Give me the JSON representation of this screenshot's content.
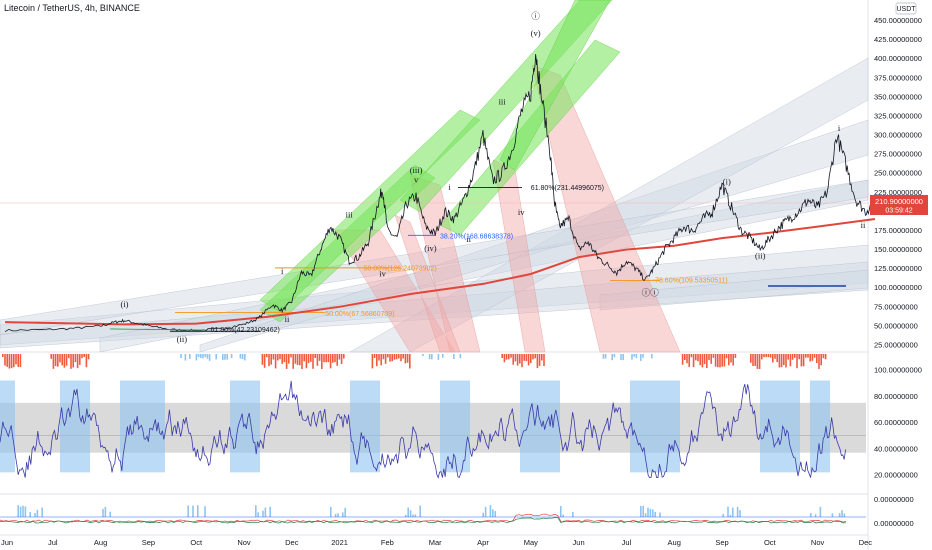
{
  "window": {
    "title": "Litecoin / TetherUS, 4h, BINANCE"
  },
  "colors": {
    "accent": "#2962ff",
    "price_line": "#131722",
    "ma_line": "#e0463c",
    "green_channel": "#76e35a",
    "red_channel": "#f2a7a7",
    "gray_channel": "#cfd6e3",
    "osc_line": "#3a3aa8",
    "osc_high": "#8fc3f2",
    "osc_band": "#d4d4d4",
    "hist_red": "#ef5b3b",
    "hist_blue": "#8fc3f2"
  },
  "chart_data": [
    {
      "type": "line",
      "title": "Litecoin / TetherUS, 4h, BINANCE",
      "currency": "USDT",
      "x": [
        "Jun",
        "Jul",
        "Aug",
        "Sep",
        "Oct",
        "Nov",
        "Dec",
        "2021",
        "Feb",
        "Mar",
        "Apr",
        "May",
        "Jun",
        "Jul",
        "Aug",
        "Sep",
        "Oct",
        "Nov",
        "Dec"
      ],
      "y_ticks": [
        "450.00000000",
        "425.00000000",
        "400.00000000",
        "375.00000000",
        "350.00000000",
        "325.00000000",
        "300.00000000",
        "275.00000000",
        "250.00000000",
        "225.00000000",
        "200.00000000",
        "175.00000000",
        "150.00000000",
        "125.00000000",
        "100.00000000",
        "75.00000000",
        "50.00000000",
        "25.00000000"
      ],
      "ylim": [
        25,
        450
      ],
      "last_price": "210.90000000",
      "countdown": "03:59:42",
      "price_series": [
        [
          0,
          44
        ],
        [
          0.8,
          45
        ],
        [
          1.5,
          47
        ],
        [
          2.0,
          50
        ],
        [
          2.3,
          55
        ],
        [
          2.5,
          57
        ],
        [
          2.8,
          53
        ],
        [
          3.1,
          49
        ],
        [
          3.5,
          45
        ],
        [
          4.0,
          44
        ],
        [
          4.5,
          46
        ],
        [
          5.0,
          52
        ],
        [
          5.3,
          60
        ],
        [
          5.6,
          78
        ],
        [
          5.8,
          70
        ],
        [
          6.0,
          82
        ],
        [
          6.2,
          120
        ],
        [
          6.4,
          115
        ],
        [
          6.6,
          150
        ],
        [
          6.8,
          180
        ],
        [
          7.0,
          165
        ],
        [
          7.2,
          135
        ],
        [
          7.4,
          140
        ],
        [
          7.6,
          160
        ],
        [
          7.8,
          210
        ],
        [
          7.9,
          230
        ],
        [
          8.0,
          175
        ],
        [
          8.2,
          165
        ],
        [
          8.4,
          210
        ],
        [
          8.6,
          220
        ],
        [
          8.8,
          180
        ],
        [
          9.0,
          170
        ],
        [
          9.2,
          200
        ],
        [
          9.4,
          190
        ],
        [
          9.6,
          215
        ],
        [
          9.8,
          250
        ],
        [
          10.0,
          300
        ],
        [
          10.2,
          240
        ],
        [
          10.4,
          250
        ],
        [
          10.6,
          280
        ],
        [
          10.8,
          330
        ],
        [
          11.0,
          355
        ],
        [
          11.1,
          410
        ],
        [
          11.2,
          360
        ],
        [
          11.4,
          280
        ],
        [
          11.5,
          210
        ],
        [
          11.6,
          180
        ],
        [
          11.8,
          190
        ],
        [
          12.0,
          150
        ],
        [
          12.2,
          160
        ],
        [
          12.4,
          140
        ],
        [
          12.6,
          130
        ],
        [
          12.8,
          120
        ],
        [
          13.0,
          135
        ],
        [
          13.2,
          125
        ],
        [
          13.4,
          110
        ],
        [
          13.6,
          128
        ],
        [
          13.8,
          150
        ],
        [
          14.0,
          165
        ],
        [
          14.2,
          180
        ],
        [
          14.4,
          175
        ],
        [
          14.6,
          190
        ],
        [
          14.8,
          200
        ],
        [
          15.0,
          235
        ],
        [
          15.2,
          205
        ],
        [
          15.4,
          175
        ],
        [
          15.6,
          165
        ],
        [
          15.8,
          150
        ],
        [
          16.0,
          165
        ],
        [
          16.2,
          180
        ],
        [
          16.4,
          190
        ],
        [
          16.6,
          200
        ],
        [
          16.8,
          215
        ],
        [
          17.0,
          205
        ],
        [
          17.2,
          225
        ],
        [
          17.4,
          300
        ],
        [
          17.6,
          260
        ],
        [
          17.8,
          215
        ],
        [
          18.0,
          200
        ],
        [
          18.2,
          212
        ]
      ],
      "ma_series": [
        [
          0,
          55
        ],
        [
          2.5,
          52
        ],
        [
          4.0,
          53
        ],
        [
          5.5,
          62
        ],
        [
          7.0,
          75
        ],
        [
          8.5,
          92
        ],
        [
          10.0,
          105
        ],
        [
          11.0,
          118
        ],
        [
          12.0,
          140
        ],
        [
          13.0,
          150
        ],
        [
          14.0,
          155
        ],
        [
          15.0,
          165
        ],
        [
          16.0,
          172
        ],
        [
          17.0,
          180
        ],
        [
          18.2,
          190
        ]
      ],
      "wave_labels": [
        {
          "text": "(i)",
          "x": 2.5,
          "y": 75
        },
        {
          "text": "(ii)",
          "x": 3.7,
          "y": 29
        },
        {
          "text": "i",
          "x": 5.8,
          "y": 118
        },
        {
          "text": "ii",
          "x": 5.9,
          "y": 55
        },
        {
          "text": "iii",
          "x": 7.2,
          "y": 192
        },
        {
          "text": "iv",
          "x": 7.9,
          "y": 115
        },
        {
          "text": "(iii)",
          "x": 8.6,
          "y": 250
        },
        {
          "text": "v",
          "x": 8.6,
          "y": 238
        },
        {
          "text": "(iv)",
          "x": 8.9,
          "y": 148
        },
        {
          "text": "i",
          "x": 9.3,
          "y": 228
        },
        {
          "text": "ii",
          "x": 9.7,
          "y": 160
        },
        {
          "text": "iii",
          "x": 10.4,
          "y": 340
        },
        {
          "text": "iv",
          "x": 10.8,
          "y": 195
        },
        {
          "text": "(v)",
          "x": 11.1,
          "y": 430
        },
        {
          "text": "ⓘ",
          "x": 11.1,
          "y": 452
        },
        {
          "text": "(i)",
          "x": 15.1,
          "y": 235
        },
        {
          "text": "(ii)",
          "x": 15.8,
          "y": 138
        },
        {
          "text": "ⓘⓘ",
          "x": 13.5,
          "y": 90
        },
        {
          "text": "i",
          "x": 17.45,
          "y": 305
        },
        {
          "text": "ii",
          "x": 17.95,
          "y": 178
        }
      ],
      "fib_labels": [
        {
          "text": "61.80%(42.23109462)",
          "x": 4.3,
          "y": 45
        },
        {
          "text": "50.00%(67.56860709)",
          "x": 6.7,
          "y": 66
        },
        {
          "text": "50.00%(126.24073902)",
          "x": 7.5,
          "y": 126
        },
        {
          "text": "38.20%(168.68638378)",
          "x": 9.1,
          "y": 168
        },
        {
          "text": "61.80%(231.44996075)",
          "x": 11.0,
          "y": 231
        },
        {
          "text": "78.60%(109.53350511)",
          "x": 13.6,
          "y": 110
        }
      ]
    },
    {
      "type": "line",
      "title": "",
      "y_ticks": [
        "100.00000000",
        "80.00000000",
        "60.00000000",
        "40.00000000",
        "20.00000000"
      ],
      "ylim": [
        10,
        110
      ],
      "band": [
        37,
        75
      ]
    },
    {
      "type": "bar",
      "title": "",
      "y_ticks": [
        "0.00000000",
        "0.00000000"
      ]
    }
  ]
}
